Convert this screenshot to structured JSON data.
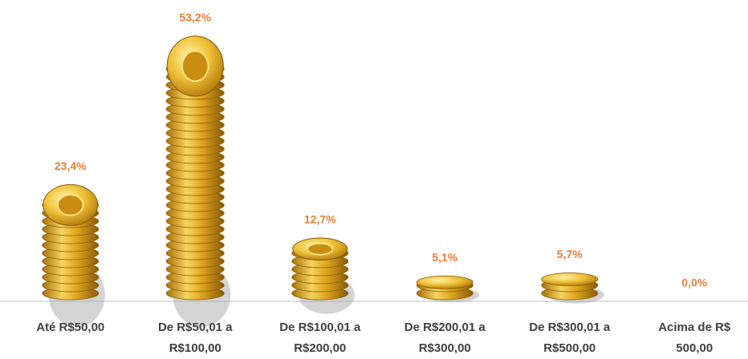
{
  "chart_data": {
    "type": "bar",
    "categories": [
      "Até R$50,00",
      "De R$50,01 a R$100,00",
      "De R$100,01 a R$200,00",
      "De R$200,01 a R$300,00",
      "De R$300,01 a R$500,00",
      "Acima de R$ 500,00"
    ],
    "values": [
      23.4,
      53.2,
      12.7,
      5.1,
      5.7,
      0.0
    ],
    "value_labels": [
      "23,4%",
      "53,2%",
      "12,7%",
      "5,1%",
      "5,7%",
      "0,0%"
    ],
    "color": "#e0a820",
    "label_color": "#ed7d31"
  }
}
